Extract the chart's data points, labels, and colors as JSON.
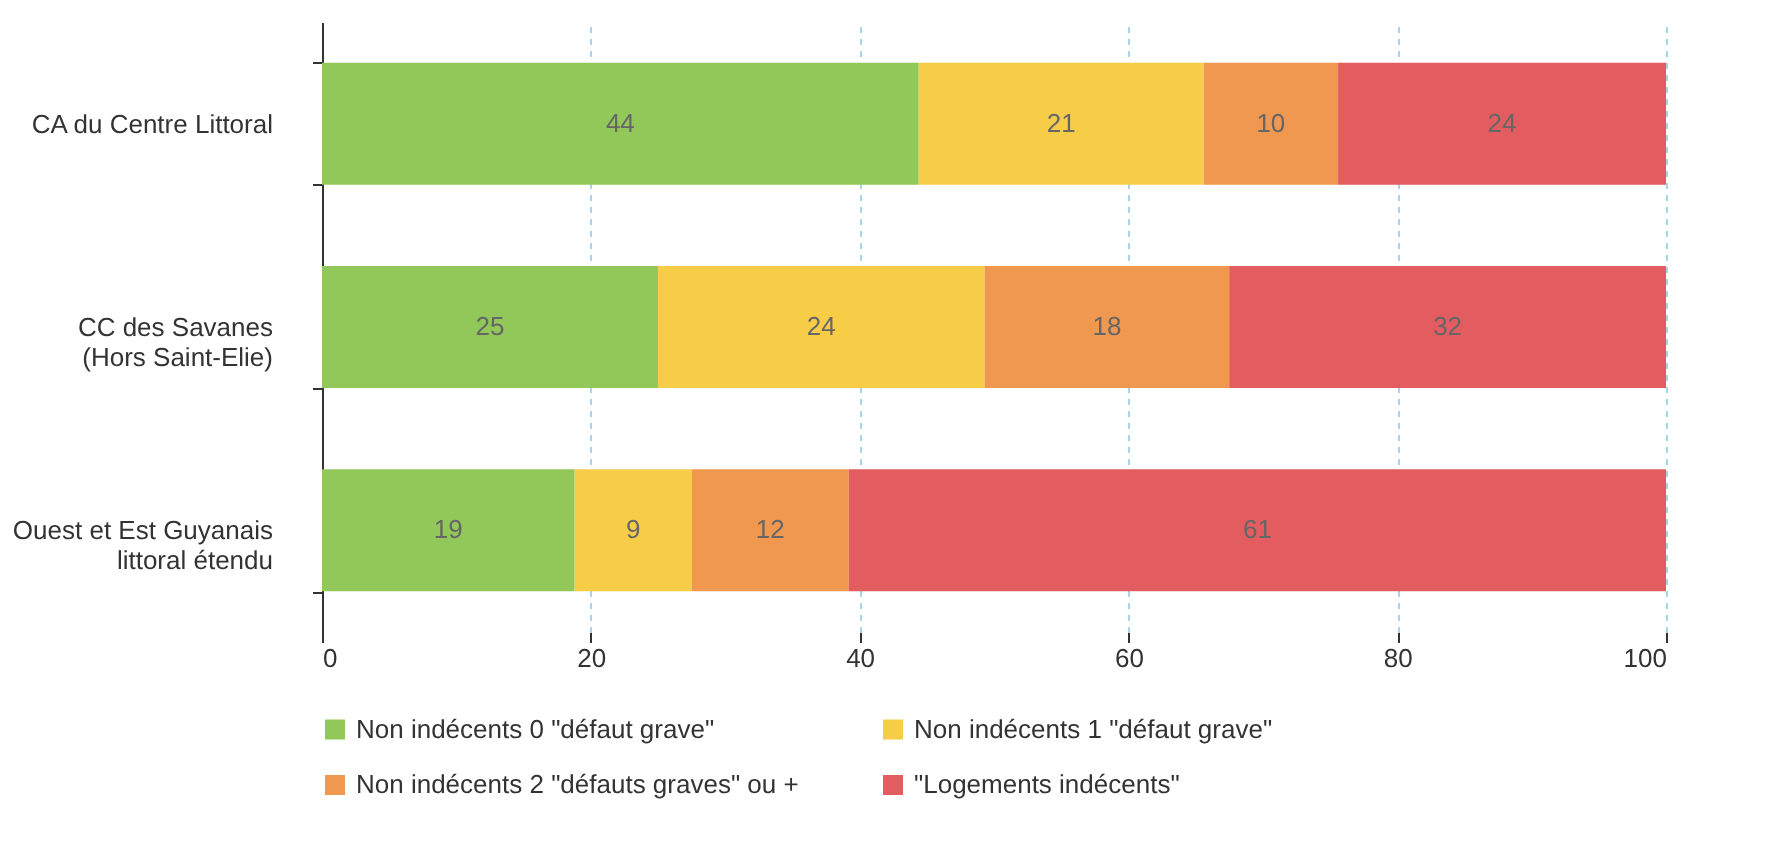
{
  "chart_data": {
    "type": "bar",
    "orientation": "horizontal",
    "stacked": true,
    "categories": [
      "CA du Centre Littoral",
      "CC des Savanes\n(Hors Saint-Elie)",
      "Ouest et Est Guyanais\nlittoral étendu"
    ],
    "series": [
      {
        "name": "Non indécents 0 \"défaut grave\"",
        "color": "#92c85a",
        "values": [
          44.4,
          25,
          18.8
        ],
        "value_labels": [
          "44",
          "25",
          "19"
        ]
      },
      {
        "name": "Non indécents 1 \"défaut grave\"",
        "color": "#f7cd48",
        "values": [
          21.2,
          24.3,
          8.7
        ],
        "value_labels": [
          "21",
          "24",
          "9"
        ]
      },
      {
        "name": "Non indécents 2 \"défauts graves\" ou +",
        "color": "#f0984f",
        "values": [
          10,
          18.2,
          11.7
        ],
        "value_labels": [
          "10",
          "18",
          "12"
        ]
      },
      {
        "name": "\"Logements indécents\"",
        "color": "#e35d60",
        "values": [
          24.4,
          32.5,
          60.8
        ],
        "value_labels": [
          "24",
          "32",
          "61"
        ]
      }
    ],
    "xlim": [
      0,
      100
    ],
    "xticks": [
      0,
      20,
      40,
      60,
      80,
      100
    ],
    "grid": "x",
    "legend": "bottom left"
  }
}
